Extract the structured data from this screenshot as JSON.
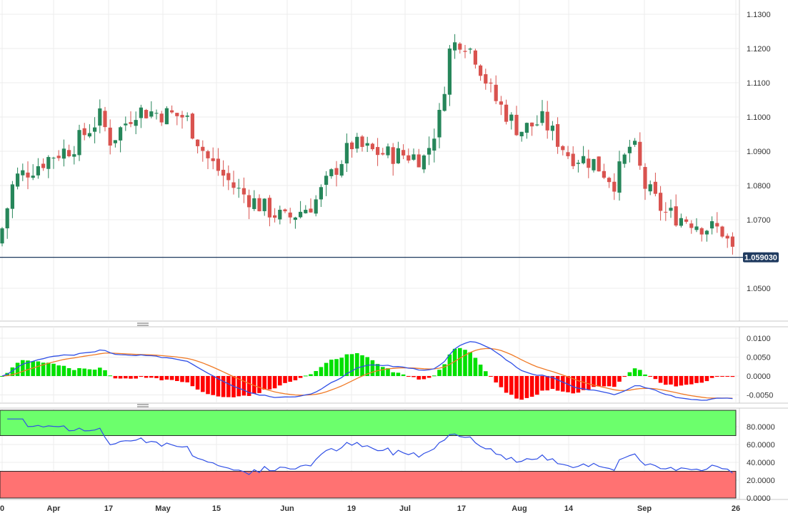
{
  "chart_data": [
    {
      "type": "candlestick",
      "title": "",
      "ylim": [
        1.04,
        1.135
      ],
      "y_ticks": [
        "1.0500",
        "1.0700",
        "1.0800",
        "1.0900",
        "1.1000",
        "1.1100",
        "1.1200",
        "1.1300"
      ],
      "x_ticks": [
        "0",
        "Apr",
        "17",
        "May",
        "15",
        "Jun",
        "19",
        "Jul",
        "17",
        "Aug",
        "14",
        "Sep",
        "26"
      ],
      "current_price": 1.05903,
      "current_price_label": "1.059030",
      "key_points": [
        {
          "x": "Mar start",
          "close": 1.065
        },
        {
          "x": "Apr 17",
          "high": 1.1075,
          "close": 1.099
        },
        {
          "x": "May",
          "high": 1.1095,
          "close": 1.101
        },
        {
          "x": "Jun",
          "low": 1.0635,
          "close": 1.07
        },
        {
          "x": "Jun 19",
          "high": 1.101,
          "close": 1.092
        },
        {
          "x": "Jul 17",
          "high": 1.1275,
          "close": 1.123
        },
        {
          "x": "Aug",
          "close": 1.096
        },
        {
          "x": "Aug 14",
          "close": 1.087
        },
        {
          "x": "Sep",
          "high": 1.0945,
          "close": 1.073
        },
        {
          "x": "Sep 26",
          "low": 1.0575,
          "close": 1.059
        }
      ],
      "colors": {
        "up": "#26865a",
        "down": "#d9534f",
        "price_line": "#1f3a5f"
      }
    },
    {
      "type": "macd",
      "ylim": [
        -0.0075,
        0.012
      ],
      "y_ticks": [
        "0.0100",
        "0.0050",
        "0.0000",
        "-0.0050"
      ],
      "series": [
        {
          "name": "MACD",
          "color": "#2f4fe6"
        },
        {
          "name": "Signal",
          "color": "#f07a26"
        },
        {
          "name": "Histogram",
          "up_color": "#00e000",
          "down_color": "#ff0000"
        }
      ]
    },
    {
      "type": "rsi",
      "ylim": [
        -4,
        100
      ],
      "y_ticks": [
        "80.0000",
        "60.0000",
        "40.0000",
        "20.0000",
        "0.0000"
      ],
      "overbought": 70,
      "oversold": 30,
      "last_value": 28,
      "colors": {
        "line": "#2f4fe6",
        "overbought_zone": "#6cff6c",
        "oversold_zone": "#ff7272"
      }
    }
  ]
}
